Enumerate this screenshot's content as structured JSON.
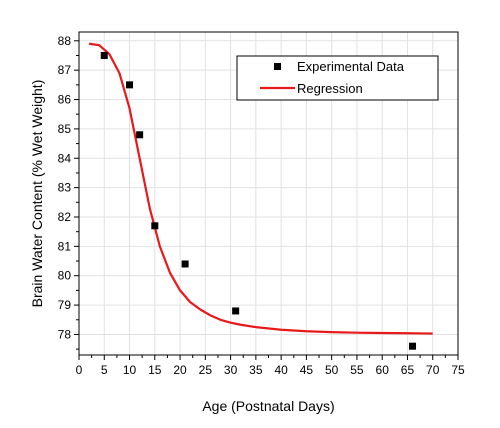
{
  "chart_data": {
    "type": "scatter",
    "xlabel": "Age (Postnatal Days)",
    "ylabel": "Brain Water Content (% Wet Weight)",
    "xlim": [
      0,
      75
    ],
    "ylim": [
      77.3,
      88.3
    ],
    "x_ticks": [
      0,
      5,
      10,
      15,
      20,
      25,
      30,
      35,
      40,
      45,
      50,
      55,
      60,
      65,
      70,
      75
    ],
    "y_ticks": [
      78,
      79,
      80,
      81,
      82,
      83,
      84,
      85,
      86,
      87,
      88
    ],
    "grid": true,
    "legend_position": "top-right",
    "colors": {
      "data": "#000000",
      "regression": "#e8191b"
    },
    "series": [
      {
        "name": "Experimental Data",
        "kind": "scatter",
        "x": [
          5,
          10,
          12,
          15,
          21,
          31,
          66
        ],
        "y": [
          87.5,
          86.5,
          84.8,
          81.7,
          80.4,
          78.8,
          77.6
        ]
      },
      {
        "name": "Regression",
        "kind": "line",
        "x": [
          2,
          4,
          6,
          8,
          10,
          12,
          14,
          16,
          18,
          20,
          22,
          24,
          26,
          28,
          30,
          32,
          35,
          40,
          45,
          50,
          55,
          60,
          65,
          70
        ],
        "y": [
          87.9,
          87.85,
          87.55,
          86.9,
          85.7,
          84.0,
          82.3,
          81.0,
          80.1,
          79.5,
          79.1,
          78.85,
          78.65,
          78.5,
          78.4,
          78.33,
          78.25,
          78.16,
          78.11,
          78.08,
          78.06,
          78.05,
          78.04,
          78.03
        ]
      }
    ]
  }
}
